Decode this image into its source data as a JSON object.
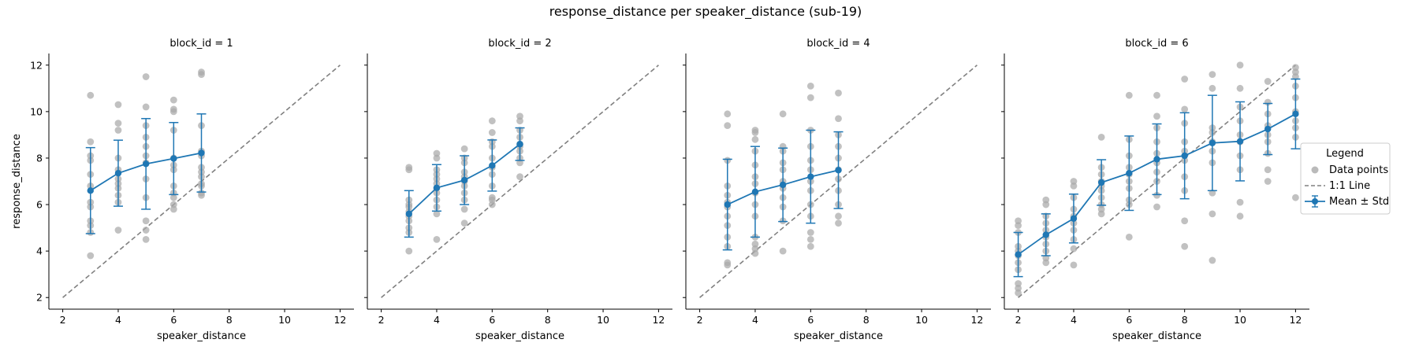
{
  "figure": {
    "title": "response_distance per speaker_distance (sub-19)"
  },
  "legend": {
    "title": "Legend",
    "items": [
      {
        "label": "Data points",
        "color": "#a9a9a9",
        "kind": "dot"
      },
      {
        "label": "1:1 Line",
        "color": "#808080",
        "kind": "dashed"
      },
      {
        "label": "Mean ± Std",
        "color": "#1f77b4",
        "kind": "errorbar"
      }
    ]
  },
  "chart_data": [
    {
      "type": "scatter",
      "title": "block_id = 1",
      "xlabel": "speaker_distance",
      "ylabel": "response_distance",
      "xlim": [
        1.5,
        12.5
      ],
      "ylim": [
        1.5,
        12.5
      ],
      "xticks": [
        2,
        4,
        6,
        8,
        10,
        12
      ],
      "yticks": [
        2,
        4,
        6,
        8,
        10,
        12
      ],
      "identity_line": [
        [
          2,
          2
        ],
        [
          12,
          12
        ]
      ],
      "points": [
        [
          3,
          10.7
        ],
        [
          3,
          8.7
        ],
        [
          3,
          8.1
        ],
        [
          3,
          7.9
        ],
        [
          3,
          7.3
        ],
        [
          3,
          6.8
        ],
        [
          3,
          6.1
        ],
        [
          3,
          5.9
        ],
        [
          3,
          5.3
        ],
        [
          3,
          5.1
        ],
        [
          3,
          4.8
        ],
        [
          3,
          3.8
        ],
        [
          4,
          10.3
        ],
        [
          4,
          9.5
        ],
        [
          4,
          9.2
        ],
        [
          4,
          8.0
        ],
        [
          4,
          7.5
        ],
        [
          4,
          7.1
        ],
        [
          4,
          6.9
        ],
        [
          4,
          6.7
        ],
        [
          4,
          6.4
        ],
        [
          4,
          6.1
        ],
        [
          4,
          4.9
        ],
        [
          5,
          11.5
        ],
        [
          5,
          10.2
        ],
        [
          5,
          9.4
        ],
        [
          5,
          8.9
        ],
        [
          5,
          8.5
        ],
        [
          5,
          8.1
        ],
        [
          5,
          7.8
        ],
        [
          5,
          7.1
        ],
        [
          5,
          6.3
        ],
        [
          5,
          5.3
        ],
        [
          5,
          4.9
        ],
        [
          5,
          4.5
        ],
        [
          6,
          10.5
        ],
        [
          6,
          10.1
        ],
        [
          6,
          10.0
        ],
        [
          6,
          9.2
        ],
        [
          6,
          8.0
        ],
        [
          6,
          7.7
        ],
        [
          6,
          7.5
        ],
        [
          6,
          6.8
        ],
        [
          6,
          6.5
        ],
        [
          6,
          6.3
        ],
        [
          6,
          6.0
        ],
        [
          6,
          5.8
        ],
        [
          7,
          11.7
        ],
        [
          7,
          11.6
        ],
        [
          7,
          9.4
        ],
        [
          7,
          8.3
        ],
        [
          7,
          8.1
        ],
        [
          7,
          7.6
        ],
        [
          7,
          7.4
        ],
        [
          7,
          7.2
        ],
        [
          7,
          6.9
        ],
        [
          7,
          6.8
        ],
        [
          7,
          6.5
        ],
        [
          7,
          6.4
        ]
      ],
      "mean": [
        [
          3,
          6.6
        ],
        [
          4,
          7.35
        ],
        [
          5,
          7.75
        ],
        [
          6,
          7.98
        ],
        [
          7,
          8.22
        ]
      ],
      "std": [
        1.85,
        1.42,
        1.95,
        1.55,
        1.68
      ]
    },
    {
      "type": "scatter",
      "title": "block_id = 2",
      "xlabel": "speaker_distance",
      "ylabel": "",
      "xlim": [
        1.5,
        12.5
      ],
      "ylim": [
        1.5,
        12.5
      ],
      "xticks": [
        2,
        4,
        6,
        8,
        10,
        12
      ],
      "yticks": [
        2,
        4,
        6,
        8,
        10,
        12
      ],
      "identity_line": [
        [
          2,
          2
        ],
        [
          12,
          12
        ]
      ],
      "points": [
        [
          3,
          7.6
        ],
        [
          3,
          7.5
        ],
        [
          3,
          6.2
        ],
        [
          3,
          6.0
        ],
        [
          3,
          5.9
        ],
        [
          3,
          5.7
        ],
        [
          3,
          5.5
        ],
        [
          3,
          5.3
        ],
        [
          3,
          5.0
        ],
        [
          3,
          4.8
        ],
        [
          3,
          4.0
        ],
        [
          4,
          8.2
        ],
        [
          4,
          8.0
        ],
        [
          4,
          7.5
        ],
        [
          4,
          7.3
        ],
        [
          4,
          7.1
        ],
        [
          4,
          6.9
        ],
        [
          4,
          6.7
        ],
        [
          4,
          6.5
        ],
        [
          4,
          6.2
        ],
        [
          4,
          5.9
        ],
        [
          4,
          5.6
        ],
        [
          4,
          4.5
        ],
        [
          5,
          8.4
        ],
        [
          5,
          8.0
        ],
        [
          5,
          7.8
        ],
        [
          5,
          7.4
        ],
        [
          5,
          7.2
        ],
        [
          5,
          7.0
        ],
        [
          5,
          6.8
        ],
        [
          5,
          6.5
        ],
        [
          5,
          6.2
        ],
        [
          5,
          5.8
        ],
        [
          5,
          5.2
        ],
        [
          6,
          9.6
        ],
        [
          6,
          9.1
        ],
        [
          6,
          8.7
        ],
        [
          6,
          8.5
        ],
        [
          6,
          8.0
        ],
        [
          6,
          7.6
        ],
        [
          6,
          7.3
        ],
        [
          6,
          6.8
        ],
        [
          6,
          6.3
        ],
        [
          6,
          6.2
        ],
        [
          6,
          6.0
        ],
        [
          7,
          9.8
        ],
        [
          7,
          9.6
        ],
        [
          7,
          9.2
        ],
        [
          7,
          8.9
        ],
        [
          7,
          8.6
        ],
        [
          7,
          8.5
        ],
        [
          7,
          8.3
        ],
        [
          7,
          8.0
        ],
        [
          7,
          7.8
        ],
        [
          7,
          7.2
        ]
      ],
      "mean": [
        [
          3,
          5.6
        ],
        [
          4,
          6.72
        ],
        [
          5,
          7.05
        ],
        [
          6,
          7.68
        ],
        [
          7,
          8.6
        ]
      ],
      "std": [
        1.0,
        1.0,
        1.05,
        1.1,
        0.7
      ]
    },
    {
      "type": "scatter",
      "title": "block_id = 4",
      "xlabel": "speaker_distance",
      "ylabel": "",
      "xlim": [
        1.5,
        12.5
      ],
      "ylim": [
        1.5,
        12.5
      ],
      "xticks": [
        2,
        4,
        6,
        8,
        10,
        12
      ],
      "yticks": [
        2,
        4,
        6,
        8,
        10,
        12
      ],
      "identity_line": [
        [
          2,
          2
        ],
        [
          12,
          12
        ]
      ],
      "points": [
        [
          3,
          9.9
        ],
        [
          3,
          9.4
        ],
        [
          3,
          7.9
        ],
        [
          3,
          6.8
        ],
        [
          3,
          6.4
        ],
        [
          3,
          6.1
        ],
        [
          3,
          5.9
        ],
        [
          3,
          5.5
        ],
        [
          3,
          5.1
        ],
        [
          3,
          4.6
        ],
        [
          3,
          4.2
        ],
        [
          3,
          3.5
        ],
        [
          3,
          3.4
        ],
        [
          4,
          9.2
        ],
        [
          4,
          9.1
        ],
        [
          4,
          8.8
        ],
        [
          4,
          8.3
        ],
        [
          4,
          7.7
        ],
        [
          4,
          7.2
        ],
        [
          4,
          6.9
        ],
        [
          4,
          6.5
        ],
        [
          4,
          6.0
        ],
        [
          4,
          5.5
        ],
        [
          4,
          4.6
        ],
        [
          4,
          4.3
        ],
        [
          4,
          4.1
        ],
        [
          4,
          3.9
        ],
        [
          5,
          9.9
        ],
        [
          5,
          8.5
        ],
        [
          5,
          8.3
        ],
        [
          5,
          7.8
        ],
        [
          5,
          7.5
        ],
        [
          5,
          7.0
        ],
        [
          5,
          6.7
        ],
        [
          5,
          6.3
        ],
        [
          5,
          5.9
        ],
        [
          5,
          5.3
        ],
        [
          5,
          4.0
        ],
        [
          6,
          11.1
        ],
        [
          6,
          10.6
        ],
        [
          6,
          9.2
        ],
        [
          6,
          8.5
        ],
        [
          6,
          7.9
        ],
        [
          6,
          7.5
        ],
        [
          6,
          7.0
        ],
        [
          6,
          6.6
        ],
        [
          6,
          6.0
        ],
        [
          6,
          5.5
        ],
        [
          6,
          4.8
        ],
        [
          6,
          4.5
        ],
        [
          6,
          4.2
        ],
        [
          7,
          10.8
        ],
        [
          7,
          9.7
        ],
        [
          7,
          9.0
        ],
        [
          7,
          8.5
        ],
        [
          7,
          8.0
        ],
        [
          7,
          7.5
        ],
        [
          7,
          7.1
        ],
        [
          7,
          6.6
        ],
        [
          7,
          6.0
        ],
        [
          7,
          5.5
        ],
        [
          7,
          5.2
        ]
      ],
      "mean": [
        [
          3,
          6.0
        ],
        [
          4,
          6.55
        ],
        [
          5,
          6.85
        ],
        [
          6,
          7.2
        ],
        [
          7,
          7.48
        ]
      ],
      "std": [
        1.95,
        1.95,
        1.58,
        2.0,
        1.65
      ]
    },
    {
      "type": "scatter",
      "title": "block_id = 6",
      "xlabel": "speaker_distance",
      "ylabel": "",
      "xlim": [
        1.5,
        12.5
      ],
      "ylim": [
        1.5,
        12.5
      ],
      "xticks": [
        2,
        4,
        6,
        8,
        10,
        12
      ],
      "yticks": [
        2,
        4,
        6,
        8,
        10,
        12
      ],
      "identity_line": [
        [
          2,
          2
        ],
        [
          12,
          12
        ]
      ],
      "points": [
        [
          2,
          5.3
        ],
        [
          2,
          5.1
        ],
        [
          2,
          4.8
        ],
        [
          2,
          4.2
        ],
        [
          2,
          4.0
        ],
        [
          2,
          3.8
        ],
        [
          2,
          3.5
        ],
        [
          2,
          3.2
        ],
        [
          2,
          2.6
        ],
        [
          2,
          2.4
        ],
        [
          2,
          2.2
        ],
        [
          3,
          6.2
        ],
        [
          3,
          6.0
        ],
        [
          3,
          5.5
        ],
        [
          3,
          5.2
        ],
        [
          3,
          4.9
        ],
        [
          3,
          4.6
        ],
        [
          3,
          4.3
        ],
        [
          3,
          4.0
        ],
        [
          3,
          3.7
        ],
        [
          3,
          3.5
        ],
        [
          4,
          7.0
        ],
        [
          4,
          6.8
        ],
        [
          4,
          6.3
        ],
        [
          4,
          5.8
        ],
        [
          4,
          5.5
        ],
        [
          4,
          5.2
        ],
        [
          4,
          4.9
        ],
        [
          4,
          4.5
        ],
        [
          4,
          4.1
        ],
        [
          4,
          3.4
        ],
        [
          5,
          8.9
        ],
        [
          5,
          7.6
        ],
        [
          5,
          7.3
        ],
        [
          5,
          7.0
        ],
        [
          5,
          6.8
        ],
        [
          5,
          6.6
        ],
        [
          5,
          6.3
        ],
        [
          5,
          6.0
        ],
        [
          5,
          5.8
        ],
        [
          5,
          5.6
        ],
        [
          6,
          10.7
        ],
        [
          6,
          8.8
        ],
        [
          6,
          8.1
        ],
        [
          6,
          7.6
        ],
        [
          6,
          7.3
        ],
        [
          6,
          7.0
        ],
        [
          6,
          6.7
        ],
        [
          6,
          6.2
        ],
        [
          6,
          6.0
        ],
        [
          6,
          4.6
        ],
        [
          7,
          10.7
        ],
        [
          7,
          9.8
        ],
        [
          7,
          9.3
        ],
        [
          7,
          8.7
        ],
        [
          7,
          8.2
        ],
        [
          7,
          7.8
        ],
        [
          7,
          7.4
        ],
        [
          7,
          7.0
        ],
        [
          7,
          6.4
        ],
        [
          7,
          5.9
        ],
        [
          8,
          11.4
        ],
        [
          8,
          10.1
        ],
        [
          8,
          9.5
        ],
        [
          8,
          8.7
        ],
        [
          8,
          8.3
        ],
        [
          8,
          7.9
        ],
        [
          8,
          7.2
        ],
        [
          8,
          6.6
        ],
        [
          8,
          5.3
        ],
        [
          8,
          4.2
        ],
        [
          9,
          11.6
        ],
        [
          9,
          11.0
        ],
        [
          9,
          9.3
        ],
        [
          9,
          9.1
        ],
        [
          9,
          8.7
        ],
        [
          9,
          8.3
        ],
        [
          9,
          7.8
        ],
        [
          9,
          6.5
        ],
        [
          9,
          5.6
        ],
        [
          9,
          3.6
        ],
        [
          10,
          12.0
        ],
        [
          10,
          11.0
        ],
        [
          10,
          10.2
        ],
        [
          10,
          9.6
        ],
        [
          10,
          9.0
        ],
        [
          10,
          8.7
        ],
        [
          10,
          8.1
        ],
        [
          10,
          7.5
        ],
        [
          10,
          6.1
        ],
        [
          10,
          5.5
        ],
        [
          11,
          11.3
        ],
        [
          11,
          10.4
        ],
        [
          11,
          9.9
        ],
        [
          11,
          9.4
        ],
        [
          11,
          9.0
        ],
        [
          11,
          8.7
        ],
        [
          11,
          8.2
        ],
        [
          11,
          7.5
        ],
        [
          11,
          7.0
        ],
        [
          12,
          11.9
        ],
        [
          12,
          11.7
        ],
        [
          12,
          11.5
        ],
        [
          12,
          11.1
        ],
        [
          12,
          10.6
        ],
        [
          12,
          10.0
        ],
        [
          12,
          9.6
        ],
        [
          12,
          9.3
        ],
        [
          12,
          8.9
        ],
        [
          12,
          6.3
        ]
      ],
      "mean": [
        [
          2,
          3.85
        ],
        [
          3,
          4.7
        ],
        [
          4,
          5.4
        ],
        [
          5,
          6.95
        ],
        [
          6,
          7.35
        ],
        [
          7,
          7.95
        ],
        [
          8,
          8.1
        ],
        [
          9,
          8.65
        ],
        [
          10,
          8.72
        ],
        [
          11,
          9.25
        ],
        [
          12,
          9.9
        ]
      ],
      "std": [
        0.95,
        0.9,
        1.05,
        0.98,
        1.6,
        1.52,
        1.85,
        2.05,
        1.7,
        1.1,
        1.5
      ]
    }
  ]
}
